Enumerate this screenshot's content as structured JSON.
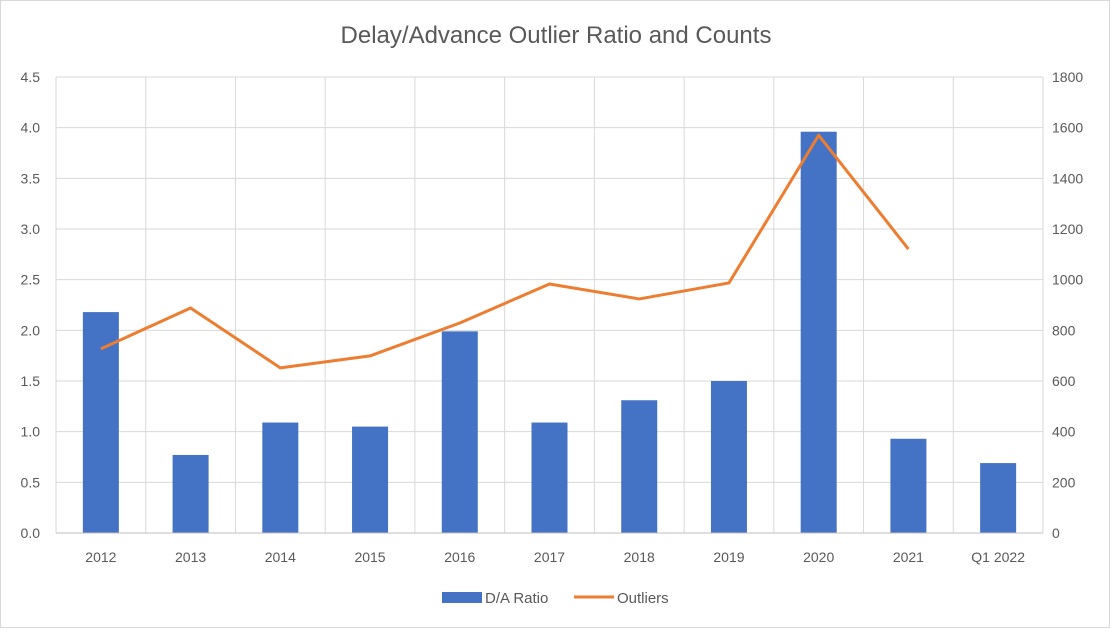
{
  "chart_data": {
    "type": "bar+line",
    "title": "Delay/Advance Outlier Ratio and Counts",
    "categories": [
      "2012",
      "2013",
      "2014",
      "2015",
      "2016",
      "2017",
      "2018",
      "2019",
      "2020",
      "2021",
      "Q1 2022"
    ],
    "series": [
      {
        "name": "D/A Ratio",
        "type": "bar",
        "axis": "left",
        "color": "#4472C4",
        "values": [
          2.18,
          0.77,
          1.09,
          1.05,
          1.99,
          1.09,
          1.31,
          1.5,
          3.96,
          0.93,
          0.69
        ]
      },
      {
        "name": "Outliers",
        "type": "line",
        "axis": "right",
        "color": "#ED7D31",
        "values": [
          727,
          888,
          652,
          699,
          829,
          983,
          924,
          987,
          1570,
          1121,
          null
        ]
      }
    ],
    "y_left": {
      "range": [
        0,
        4.5
      ],
      "ticks": [
        "0.0",
        "0.5",
        "1.0",
        "1.5",
        "2.0",
        "2.5",
        "3.0",
        "3.5",
        "4.0",
        "4.5"
      ]
    },
    "y_right": {
      "range": [
        0,
        1800
      ],
      "ticks": [
        "0",
        "200",
        "400",
        "600",
        "800",
        "1000",
        "1200",
        "1400",
        "1600",
        "1800"
      ]
    },
    "grid": true,
    "legend": "bottom"
  }
}
